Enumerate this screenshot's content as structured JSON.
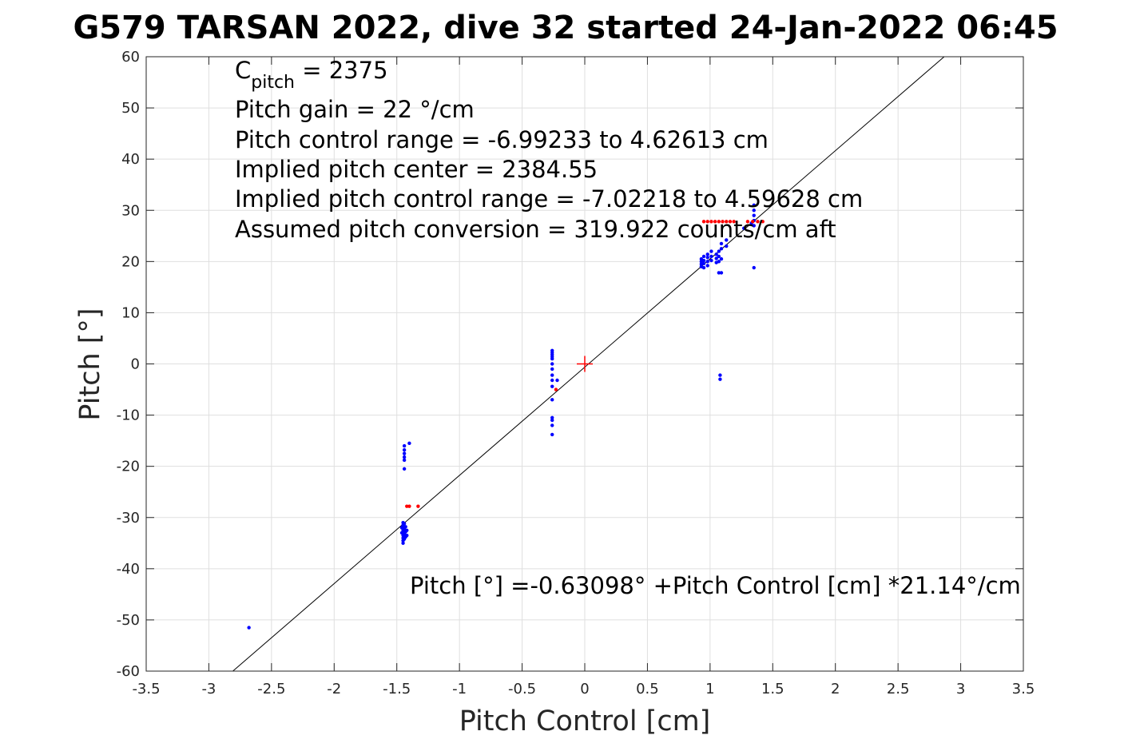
{
  "chart_data": {
    "type": "scatter",
    "title": "G579 TARSAN 2022, dive 32 started 24-Jan-2022 06:45",
    "xlabel": "Pitch Control [cm]",
    "ylabel": "Pitch [°]",
    "xlim": [
      -3.5,
      3.5
    ],
    "ylim": [
      -60,
      60
    ],
    "xticks": [
      "-3.5",
      "-3",
      "-2.5",
      "-2",
      "-1.5",
      "-1",
      "-0.5",
      "0",
      "0.5",
      "1",
      "1.5",
      "2",
      "2.5",
      "3",
      "3.5"
    ],
    "yticks": [
      "60",
      "50",
      "40",
      "30",
      "20",
      "10",
      "0",
      "-10",
      "-20",
      "-30",
      "-40",
      "-50",
      "-60"
    ],
    "grid": true,
    "annotations": {
      "c_pitch_symbol": "C",
      "c_pitch_sub": "pitch",
      "c_pitch_value": " = 2375",
      "pitch_gain": "Pitch gain = 22 °/cm",
      "pitch_control_range": "Pitch control range = -6.99233 to 4.62613 cm",
      "implied_center": "Implied pitch center = 2384.55",
      "implied_range": "Implied pitch control range = -7.02218 to 4.59628 cm",
      "assumed_conversion": "Assumed pitch conversion = 319.922 counts/cm aft",
      "fit_equation": "Pitch [°] =-0.63098° +Pitch Control [cm] *21.14°/cm"
    },
    "fit_line": {
      "intercept": -0.63098,
      "slope": 21.14,
      "color": "#000000"
    },
    "center_marker": {
      "x": 0,
      "y": 0,
      "color": "#ff0000"
    },
    "series": [
      {
        "color": "#0000ff",
        "points": [
          [
            -2.68,
            -51.5
          ],
          [
            -1.45,
            -31.0
          ],
          [
            -1.45,
            -31.5
          ],
          [
            -1.45,
            -32.0
          ],
          [
            -1.45,
            -32.5
          ],
          [
            -1.45,
            -33.0
          ],
          [
            -1.45,
            -33.5
          ],
          [
            -1.45,
            -34.0
          ],
          [
            -1.45,
            -34.5
          ],
          [
            -1.45,
            -35.0
          ],
          [
            -1.44,
            -31.2
          ],
          [
            -1.44,
            -32.2
          ],
          [
            -1.44,
            -33.2
          ],
          [
            -1.44,
            -34.2
          ],
          [
            -1.43,
            -31.8
          ],
          [
            -1.43,
            -32.8
          ],
          [
            -1.43,
            -33.8
          ],
          [
            -1.42,
            -32.5
          ],
          [
            -1.42,
            -33.5
          ],
          [
            -1.46,
            -32.0
          ],
          [
            -1.46,
            -33.0
          ],
          [
            -1.44,
            -16.0
          ],
          [
            -1.44,
            -16.8
          ],
          [
            -1.44,
            -17.5
          ],
          [
            -1.44,
            -18.2
          ],
          [
            -1.44,
            -18.8
          ],
          [
            -1.44,
            -20.5
          ],
          [
            -1.4,
            -15.5
          ],
          [
            -0.26,
            2.6
          ],
          [
            -0.26,
            2.2
          ],
          [
            -0.26,
            1.8
          ],
          [
            -0.26,
            1.4
          ],
          [
            -0.26,
            1.0
          ],
          [
            -0.26,
            0.0
          ],
          [
            -0.26,
            -1.0
          ],
          [
            -0.26,
            -2.2
          ],
          [
            -0.26,
            -3.2
          ],
          [
            -0.26,
            -4.4
          ],
          [
            -0.26,
            -7.0
          ],
          [
            -0.26,
            -10.5
          ],
          [
            -0.26,
            -11.0
          ],
          [
            -0.26,
            -12.0
          ],
          [
            -0.26,
            -13.8
          ],
          [
            -0.22,
            -3.2
          ],
          [
            0.93,
            19.0
          ],
          [
            0.93,
            19.5
          ],
          [
            0.93,
            20.0
          ],
          [
            0.93,
            20.5
          ],
          [
            0.95,
            18.8
          ],
          [
            0.95,
            19.6
          ],
          [
            0.95,
            20.2
          ],
          [
            0.95,
            21.0
          ],
          [
            0.98,
            19.2
          ],
          [
            0.98,
            20.0
          ],
          [
            0.98,
            20.8
          ],
          [
            0.98,
            21.4
          ],
          [
            1.01,
            20.2
          ],
          [
            1.01,
            21.0
          ],
          [
            1.01,
            22.0
          ],
          [
            1.05,
            19.8
          ],
          [
            1.05,
            20.6
          ],
          [
            1.05,
            21.4
          ],
          [
            1.07,
            20.0
          ],
          [
            1.07,
            21.0
          ],
          [
            1.07,
            22.0
          ],
          [
            1.07,
            17.8
          ],
          [
            1.09,
            20.5
          ],
          [
            1.09,
            22.5
          ],
          [
            1.09,
            23.5
          ],
          [
            1.09,
            17.8
          ],
          [
            1.13,
            23.0
          ],
          [
            1.13,
            24.2
          ],
          [
            1.08,
            -2.2
          ],
          [
            1.08,
            -3.0
          ],
          [
            1.35,
            27.0
          ],
          [
            1.35,
            28.0
          ],
          [
            1.35,
            29.0
          ],
          [
            1.35,
            30.0
          ],
          [
            1.35,
            31.0
          ],
          [
            1.35,
            18.8
          ],
          [
            1.33,
            27.5
          ],
          [
            1.27,
            26.5
          ]
        ]
      },
      {
        "color": "#ff0000",
        "points": [
          [
            -1.42,
            -27.8
          ],
          [
            -1.4,
            -27.8
          ],
          [
            -1.33,
            -27.8
          ],
          [
            -0.23,
            -5.0
          ],
          [
            0.95,
            27.8
          ],
          [
            0.98,
            27.8
          ],
          [
            1.01,
            27.8
          ],
          [
            1.04,
            27.8
          ],
          [
            1.07,
            27.8
          ],
          [
            1.1,
            27.8
          ],
          [
            1.13,
            27.8
          ],
          [
            1.16,
            27.8
          ],
          [
            1.19,
            27.8
          ],
          [
            1.3,
            27.8
          ],
          [
            1.34,
            27.8
          ],
          [
            1.38,
            27.8
          ],
          [
            1.42,
            27.8
          ]
        ]
      }
    ]
  }
}
